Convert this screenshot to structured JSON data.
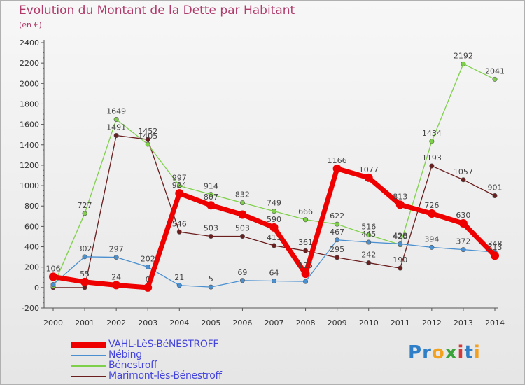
{
  "header": {
    "title": "Evolution du Montant de la Dette par Habitant",
    "unit": "(en €)"
  },
  "brand": {
    "name": "Proxiti",
    "letters": [
      {
        "ch": "P",
        "color": "#2f7fc8"
      },
      {
        "ch": "r",
        "color": "#2f7fc8"
      },
      {
        "ch": "o",
        "color": "#f2a11f"
      },
      {
        "ch": "x",
        "color": "#3aa33a"
      },
      {
        "ch": "i",
        "color": "#d23a3a"
      },
      {
        "ch": "t",
        "color": "#2f7fc8"
      },
      {
        "ch": "i",
        "color": "#f2a11f"
      }
    ]
  },
  "chart_data": {
    "type": "line",
    "x": [
      "2000",
      "2001",
      "2002",
      "2003",
      "2004",
      "2005",
      "2006",
      "2007",
      "2008",
      "2009",
      "2010",
      "2011",
      "2012",
      "2013",
      "2014"
    ],
    "ylim": [
      -200,
      2400
    ],
    "yticks": [
      -200,
      0,
      200,
      400,
      600,
      800,
      1000,
      1200,
      1400,
      1600,
      1800,
      2000,
      2200,
      2400
    ],
    "grid": false,
    "legend_position": "bottom",
    "series": [
      {
        "name": "VAHL-LèS-BéNESTROFF",
        "color": "#ee0000",
        "values": [
          106,
          55,
          24,
          0,
          924,
          807,
          716,
          590,
          135,
          1166,
          1077,
          813,
          726,
          630,
          313
        ]
      },
      {
        "name": "Nébing",
        "color": "#4a90d0",
        "values": [
          30,
          302,
          297,
          202,
          21,
          5,
          69,
          64,
          60,
          467,
          445,
          428,
          394,
          372,
          348
        ]
      },
      {
        "name": "Bénestroff",
        "color": "#7ed04a",
        "values": [
          12,
          727,
          1649,
          1405,
          997,
          914,
          832,
          749,
          666,
          622,
          516,
          420,
          1434,
          2192,
          2041
        ]
      },
      {
        "name": "Marimont-lès-Bénestroff",
        "color": "#6b1e1e",
        "values": [
          0,
          0,
          1491,
          1452,
          546,
          503,
          503,
          411,
          361,
          295,
          242,
          190,
          1193,
          1057,
          901
        ]
      }
    ],
    "data_labels": [
      {
        "text": "106",
        "x": "2000",
        "y": 106
      },
      {
        "text": "55",
        "x": "2001",
        "y": 55
      },
      {
        "text": "24",
        "x": "2002",
        "y": 24
      },
      {
        "text": "0",
        "x": "2003",
        "y": 0
      },
      {
        "text": "924",
        "x": "2004",
        "y": 924
      },
      {
        "text": "807",
        "x": "2005",
        "y": 807
      },
      {
        "text": "590",
        "x": "2007",
        "y": 590
      },
      {
        "text": "135",
        "x": "2008",
        "y": 135
      },
      {
        "text": "1166",
        "x": "2009",
        "y": 1166
      },
      {
        "text": "1077",
        "x": "2010",
        "y": 1077
      },
      {
        "text": "813",
        "x": "2011",
        "y": 813
      },
      {
        "text": "726",
        "x": "2012",
        "y": 726
      },
      {
        "text": "630",
        "x": "2013",
        "y": 630
      },
      {
        "text": "313",
        "x": "2014",
        "y": 313
      },
      {
        "text": "302",
        "x": "2001",
        "y": 302
      },
      {
        "text": "297",
        "x": "2002",
        "y": 297
      },
      {
        "text": "202",
        "x": "2003",
        "y": 202
      },
      {
        "text": "21",
        "x": "2004",
        "y": 21
      },
      {
        "text": "5",
        "x": "2005",
        "y": 5
      },
      {
        "text": "69",
        "x": "2006",
        "y": 69
      },
      {
        "text": "64",
        "x": "2007",
        "y": 64
      },
      {
        "text": "467",
        "x": "2009",
        "y": 467
      },
      {
        "text": "445",
        "x": "2010",
        "y": 445
      },
      {
        "text": "428",
        "x": "2011",
        "y": 428
      },
      {
        "text": "394",
        "x": "2012",
        "y": 394
      },
      {
        "text": "372",
        "x": "2013",
        "y": 372
      },
      {
        "text": "348",
        "x": "2014",
        "y": 348
      },
      {
        "text": "727",
        "x": "2001",
        "y": 727
      },
      {
        "text": "1649",
        "x": "2002",
        "y": 1649
      },
      {
        "text": "1405",
        "x": "2003",
        "y": 1405
      },
      {
        "text": "997",
        "x": "2004",
        "y": 997
      },
      {
        "text": "914",
        "x": "2005",
        "y": 914
      },
      {
        "text": "832",
        "x": "2006",
        "y": 832
      },
      {
        "text": "749",
        "x": "2007",
        "y": 749
      },
      {
        "text": "666",
        "x": "2008",
        "y": 666
      },
      {
        "text": "622",
        "x": "2009",
        "y": 622
      },
      {
        "text": "516",
        "x": "2010",
        "y": 516
      },
      {
        "text": "420",
        "x": "2011",
        "y": 420
      },
      {
        "text": "1434",
        "x": "2012",
        "y": 1434
      },
      {
        "text": "2192",
        "x": "2013",
        "y": 2192
      },
      {
        "text": "2041",
        "x": "2014",
        "y": 2041
      },
      {
        "text": "1491",
        "x": "2002",
        "y": 1491
      },
      {
        "text": "1452",
        "x": "2003",
        "y": 1452
      },
      {
        "text": "546",
        "x": "2004",
        "y": 546
      },
      {
        "text": "503",
        "x": "2005",
        "y": 503
      },
      {
        "text": "503",
        "x": "2006",
        "y": 503
      },
      {
        "text": "411",
        "x": "2007",
        "y": 411
      },
      {
        "text": "361",
        "x": "2008",
        "y": 361
      },
      {
        "text": "295",
        "x": "2009",
        "y": 295
      },
      {
        "text": "242",
        "x": "2010",
        "y": 242
      },
      {
        "text": "190",
        "x": "2011",
        "y": 190
      },
      {
        "text": "1193",
        "x": "2012",
        "y": 1193
      },
      {
        "text": "1057",
        "x": "2013",
        "y": 1057
      },
      {
        "text": "901",
        "x": "2014",
        "y": 901
      }
    ]
  }
}
